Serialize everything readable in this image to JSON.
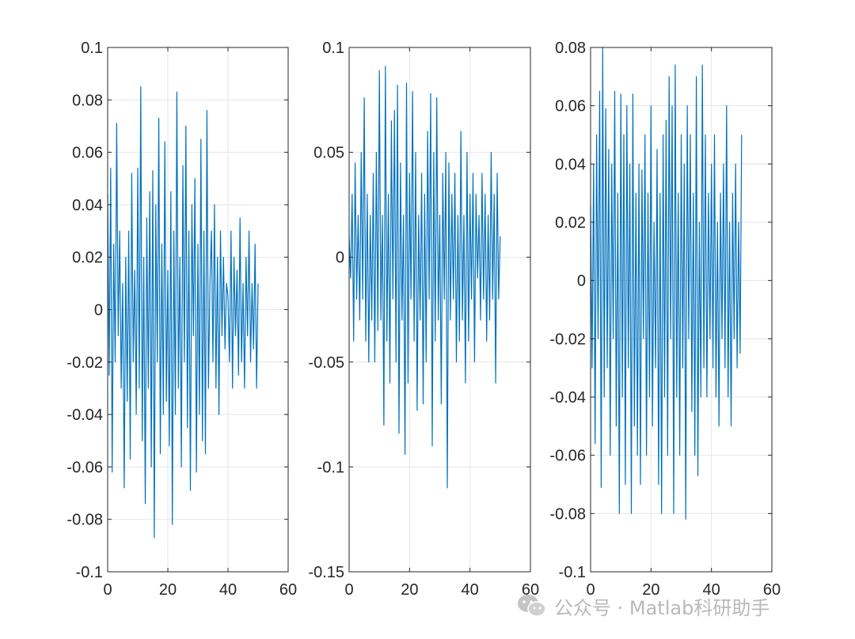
{
  "chart_data": [
    {
      "type": "line",
      "title": "",
      "xlabel": "",
      "ylabel": "",
      "xlim": [
        0,
        60
      ],
      "ylim": [
        -0.1,
        0.1
      ],
      "xticks": [
        0,
        20,
        40,
        60
      ],
      "yticks": [
        -0.1,
        -0.08,
        -0.06,
        -0.04,
        -0.02,
        0,
        0.02,
        0.04,
        0.06,
        0.08,
        0.1
      ],
      "xtick_labels": [
        "0",
        "20",
        "40",
        "60"
      ],
      "ytick_labels": [
        "-0.1",
        "-0.08",
        "-0.06",
        "-0.04",
        "-0.02",
        "0",
        "0.02",
        "0.04",
        "0.06",
        "0.08",
        "0.1"
      ],
      "grid": true,
      "line_color": "#0072BD",
      "series": [
        {
          "x": [
            0,
            0.5,
            1,
            1.5,
            2,
            2.5,
            3,
            3.5,
            4,
            4.5,
            5,
            5.5,
            6,
            6.5,
            7,
            7.5,
            8,
            8.5,
            9,
            9.5,
            10,
            10.5,
            11,
            11.5,
            12,
            12.5,
            13,
            13.5,
            14,
            14.5,
            15,
            15.5,
            16,
            16.5,
            17,
            17.5,
            18,
            18.5,
            19,
            19.5,
            20,
            20.5,
            21,
            21.5,
            22,
            22.5,
            23,
            23.5,
            24,
            24.5,
            25,
            25.5,
            26,
            26.5,
            27,
            27.5,
            28,
            28.5,
            29,
            29.5,
            30,
            30.5,
            31,
            31.5,
            32,
            32.5,
            33,
            33.5,
            34,
            34.5,
            35,
            35.5,
            36,
            36.5,
            37,
            37.5,
            38,
            38.5,
            39,
            39.5,
            40,
            40.5,
            41,
            41.5,
            42,
            42.5,
            43,
            43.5,
            44,
            44.5,
            45,
            45.5,
            46,
            46.5,
            47,
            47.5,
            48,
            48.5,
            49,
            49.5,
            50
          ],
          "y": [
            0.044,
            -0.025,
            0.054,
            -0.062,
            0.025,
            -0.02,
            0.071,
            -0.01,
            0.03,
            -0.03,
            0.01,
            -0.068,
            0.02,
            -0.035,
            0.03,
            -0.057,
            0.052,
            -0.02,
            0.015,
            -0.04,
            0.054,
            -0.03,
            0.085,
            -0.05,
            0.02,
            -0.074,
            0.035,
            -0.03,
            0.045,
            -0.06,
            0.053,
            -0.087,
            0.04,
            -0.02,
            0.073,
            -0.055,
            0.025,
            -0.04,
            0.064,
            -0.035,
            0.015,
            -0.052,
            0.045,
            -0.082,
            0.03,
            -0.04,
            0.083,
            -0.03,
            0.02,
            -0.06,
            0.055,
            -0.02,
            0.07,
            -0.045,
            0.03,
            -0.069,
            0.04,
            -0.01,
            0.05,
            -0.062,
            0.025,
            -0.04,
            0.065,
            -0.05,
            0.03,
            -0.055,
            0.076,
            -0.03,
            0.01,
            0.03,
            -0.02,
            0.04,
            -0.03,
            0.02,
            -0.04,
            0.03,
            -0.01,
            0.02,
            -0.015,
            0.01,
            0.005,
            -0.02,
            0.03,
            -0.03,
            0.02,
            -0.01,
            0.015,
            -0.025,
            0.035,
            -0.02,
            0.01,
            -0.03,
            0.02,
            -0.01,
            0.03,
            -0.02,
            0.01,
            -0.015,
            0.025,
            -0.03,
            0.01
          ]
        }
      ]
    },
    {
      "type": "line",
      "title": "",
      "xlabel": "",
      "ylabel": "",
      "xlim": [
        0,
        60
      ],
      "ylim": [
        -0.15,
        0.1
      ],
      "xticks": [
        0,
        20,
        40,
        60
      ],
      "yticks": [
        -0.15,
        -0.1,
        -0.05,
        0,
        0.05,
        0.1
      ],
      "xtick_labels": [
        "0",
        "20",
        "40",
        "60"
      ],
      "ytick_labels": [
        "-0.15",
        "-0.1",
        "-0.05",
        "0",
        "0.05",
        "0.1"
      ],
      "grid": true,
      "line_color": "#0072BD",
      "series": [
        {
          "x": [
            0,
            0.5,
            1,
            1.5,
            2,
            2.5,
            3,
            3.5,
            4,
            4.5,
            5,
            5.5,
            6,
            6.5,
            7,
            7.5,
            8,
            8.5,
            9,
            9.5,
            10,
            10.5,
            11,
            11.5,
            12,
            12.5,
            13,
            13.5,
            14,
            14.5,
            15,
            15.5,
            16,
            16.5,
            17,
            17.5,
            18,
            18.5,
            19,
            19.5,
            20,
            20.5,
            21,
            21.5,
            22,
            22.5,
            23,
            23.5,
            24,
            24.5,
            25,
            25.5,
            26,
            26.5,
            27,
            27.5,
            28,
            28.5,
            29,
            29.5,
            30,
            30.5,
            31,
            31.5,
            32,
            32.5,
            33,
            33.5,
            34,
            34.5,
            35,
            35.5,
            36,
            36.5,
            37,
            37.5,
            38,
            38.5,
            39,
            39.5,
            40,
            40.5,
            41,
            41.5,
            42,
            42.5,
            43,
            43.5,
            44,
            44.5,
            45,
            45.5,
            46,
            46.5,
            47,
            47.5,
            48,
            48.5,
            49,
            49.5,
            50
          ],
          "y": [
            0.01,
            -0.01,
            0.03,
            -0.04,
            0.045,
            -0.02,
            0.02,
            -0.03,
            0.05,
            -0.02,
            0.076,
            -0.04,
            0.03,
            -0.05,
            0.02,
            -0.03,
            0.04,
            -0.05,
            0.05,
            -0.035,
            0.089,
            -0.03,
            0.02,
            -0.08,
            0.091,
            -0.04,
            0.03,
            -0.06,
            0.065,
            -0.02,
            0.07,
            -0.05,
            0.082,
            -0.084,
            0.045,
            -0.03,
            0.02,
            -0.094,
            0.083,
            -0.06,
            0.04,
            -0.02,
            0.079,
            -0.04,
            0.05,
            -0.073,
            0.02,
            -0.03,
            0.04,
            -0.07,
            0.03,
            -0.05,
            0.06,
            -0.02,
            0.078,
            -0.09,
            0.05,
            -0.04,
            0.076,
            -0.03,
            0.02,
            -0.07,
            0.04,
            -0.02,
            0.05,
            -0.11,
            0.045,
            -0.03,
            0.03,
            -0.02,
            0.04,
            -0.05,
            0.02,
            -0.04,
            0.06,
            -0.03,
            0.02,
            -0.06,
            0.05,
            -0.04,
            0.03,
            -0.02,
            0.04,
            -0.05,
            0.03,
            -0.01,
            0.02,
            -0.03,
            0.04,
            -0.02,
            0.03,
            -0.04,
            0.02,
            -0.03,
            0.05,
            -0.02,
            0.03,
            -0.06,
            0.04,
            -0.02,
            0.01
          ]
        }
      ]
    },
    {
      "type": "line",
      "title": "",
      "xlabel": "",
      "ylabel": "",
      "xlim": [
        0,
        60
      ],
      "ylim": [
        -0.1,
        0.08
      ],
      "xticks": [
        0,
        20,
        40,
        60
      ],
      "yticks": [
        -0.1,
        -0.08,
        -0.06,
        -0.04,
        -0.02,
        0,
        0.02,
        0.04,
        0.06,
        0.08
      ],
      "xtick_labels": [
        "0",
        "20",
        "40",
        "60"
      ],
      "ytick_labels": [
        "-0.1",
        "-0.08",
        "-0.06",
        "-0.04",
        "-0.02",
        "0",
        "0.02",
        "0.04",
        "0.06",
        "0.08"
      ],
      "grid": true,
      "line_color": "#0072BD",
      "series": [
        {
          "x": [
            0,
            0.5,
            1,
            1.5,
            2,
            2.5,
            3,
            3.5,
            4,
            4.5,
            5,
            5.5,
            6,
            6.5,
            7,
            7.5,
            8,
            8.5,
            9,
            9.5,
            10,
            10.5,
            11,
            11.5,
            12,
            12.5,
            13,
            13.5,
            14,
            14.5,
            15,
            15.5,
            16,
            16.5,
            17,
            17.5,
            18,
            18.5,
            19,
            19.5,
            20,
            20.5,
            21,
            21.5,
            22,
            22.5,
            23,
            23.5,
            24,
            24.5,
            25,
            25.5,
            26,
            26.5,
            27,
            27.5,
            28,
            28.5,
            29,
            29.5,
            30,
            30.5,
            31,
            31.5,
            32,
            32.5,
            33,
            33.5,
            34,
            34.5,
            35,
            35.5,
            36,
            36.5,
            37,
            37.5,
            38,
            38.5,
            39,
            39.5,
            40,
            40.5,
            41,
            41.5,
            42,
            42.5,
            43,
            43.5,
            44,
            44.5,
            45,
            45.5,
            46,
            46.5,
            47,
            47.5,
            48,
            48.5,
            49,
            49.5,
            50
          ],
          "y": [
            0.026,
            -0.03,
            0.04,
            -0.056,
            0.05,
            -0.02,
            0.065,
            -0.071,
            0.08,
            -0.04,
            0.059,
            -0.03,
            0.045,
            -0.06,
            0.04,
            -0.02,
            0.065,
            -0.05,
            0.03,
            -0.08,
            0.064,
            -0.04,
            0.05,
            -0.07,
            0.06,
            -0.03,
            0.04,
            -0.08,
            0.064,
            -0.05,
            0.03,
            -0.06,
            0.04,
            -0.07,
            0.038,
            -0.02,
            0.05,
            -0.06,
            0.03,
            -0.04,
            0.06,
            -0.05,
            0.02,
            -0.03,
            0.045,
            -0.07,
            0.03,
            -0.08,
            0.05,
            -0.04,
            0.055,
            -0.06,
            0.07,
            -0.02,
            0.06,
            -0.08,
            0.074,
            -0.04,
            0.03,
            -0.06,
            0.05,
            -0.03,
            0.04,
            -0.082,
            0.06,
            -0.02,
            0.05,
            -0.045,
            0.03,
            -0.06,
            0.07,
            -0.067,
            0.02,
            -0.04,
            0.074,
            -0.03,
            0.05,
            -0.04,
            0.03,
            -0.02,
            0.04,
            -0.03,
            0.05,
            -0.04,
            0.02,
            -0.05,
            0.03,
            -0.02,
            0.04,
            -0.03,
            0.06,
            -0.04,
            0.02,
            -0.05,
            0.03,
            -0.02,
            0.04,
            -0.03,
            0.02,
            -0.025,
            0.05
          ]
        }
      ]
    }
  ],
  "watermark": {
    "icon": "wechat-icon",
    "text": "公众号 · Matlab科研助手"
  }
}
